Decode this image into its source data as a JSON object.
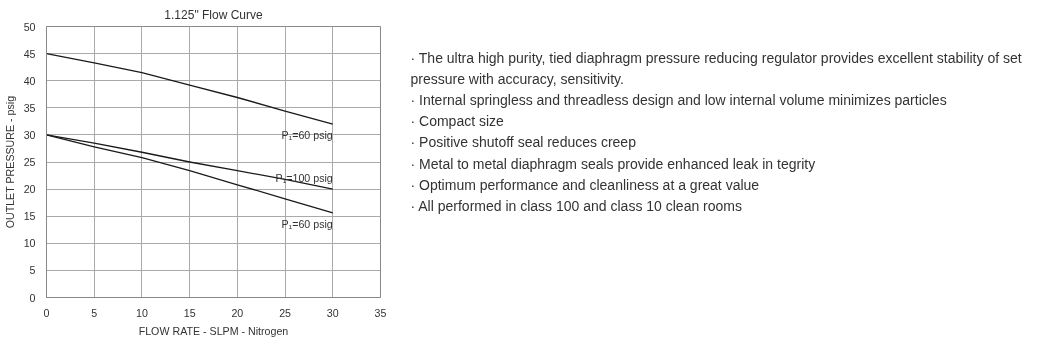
{
  "chart_data": [
    {
      "type": "line",
      "title": "1.125\" Flow Curve",
      "xlabel": "FLOW RATE - SLPM - Nitrogen",
      "ylabel": "OUTLET PRESSURE - psig",
      "xlim": [
        0,
        35
      ],
      "ylim": [
        0,
        50
      ],
      "xticks": [
        0,
        5,
        10,
        15,
        20,
        25,
        30,
        35
      ],
      "yticks": [
        0,
        5,
        10,
        15,
        20,
        25,
        30,
        35,
        40,
        45,
        50
      ],
      "grid": true,
      "legend": false,
      "marker": "none",
      "line_style": "solid",
      "series": [
        {
          "name": "P₁=60 psig",
          "color": "#1a1a1a",
          "x": [
            0,
            5,
            10,
            15,
            20,
            25,
            30
          ],
          "values": [
            45,
            43.3,
            41.5,
            39.2,
            36.9,
            34.4,
            32
          ]
        },
        {
          "name": "P₁=100 psig",
          "color": "#1a1a1a",
          "x": [
            0,
            5,
            10,
            15,
            20,
            25,
            30
          ],
          "values": [
            30,
            28.5,
            26.8,
            25,
            23.4,
            21.8,
            20
          ]
        },
        {
          "name": "P₁=60 psig",
          "color": "#1a1a1a",
          "x": [
            0,
            5,
            10,
            15,
            20,
            25,
            30
          ],
          "values": [
            30,
            27.8,
            25.8,
            23.4,
            20.8,
            18.2,
            15.6
          ]
        }
      ]
    },
    {
      "type": "other",
      "annotations": [
        "· The ultra high purity, tied diaphragm pressure reducing regulator provides excellent stability of set pressure with accuracy, sensitivity.",
        "· Internal springless and threadless design and low internal volume minimizes particles",
        "· Compact size",
        "· Positive shutoff seal reduces creep",
        "· Metal to metal diaphragm seals provide enhanced leak in tegrity",
        "· Optimum performance and cleanliness at a great value",
        "· All performed in class 100 and class 10 clean rooms"
      ]
    }
  ]
}
